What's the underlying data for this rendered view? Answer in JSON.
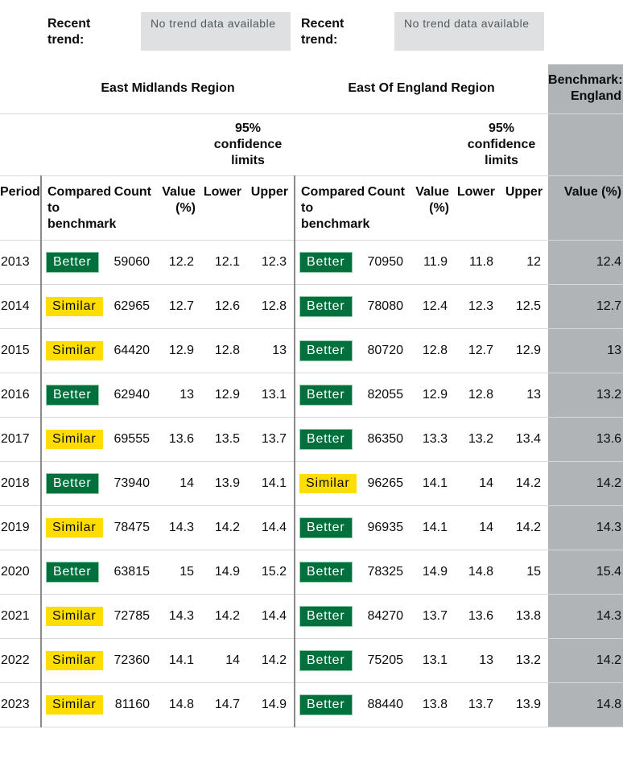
{
  "trend": {
    "left": {
      "label": "Recent trend:",
      "value": "No trend data available"
    },
    "right": {
      "label": "Recent trend:",
      "value": "No trend data available"
    }
  },
  "header": {
    "region1": "East Midlands Region",
    "region2": "East Of England Region",
    "benchmark": "Benchmark: England",
    "ci_label": "95% confidence limits",
    "columns": {
      "period": "Period",
      "compared": "Compared to benchmark",
      "count": "Count",
      "value": "Value (%)",
      "lower": "Lower",
      "upper": "Upper",
      "bench_value": "Value (%)"
    }
  },
  "colors": {
    "better": "#00703c",
    "similar": "#ffdd00",
    "benchmark_bg": "#b1b4b6"
  },
  "rows": [
    {
      "period": "2013",
      "em": {
        "cmp": "Better",
        "count": "59060",
        "value": "12.2",
        "lower": "12.1",
        "upper": "12.3"
      },
      "ee": {
        "cmp": "Better",
        "count": "70950",
        "value": "11.9",
        "lower": "11.8",
        "upper": "12"
      },
      "bench": "12.4"
    },
    {
      "period": "2014",
      "em": {
        "cmp": "Similar",
        "count": "62965",
        "value": "12.7",
        "lower": "12.6",
        "upper": "12.8"
      },
      "ee": {
        "cmp": "Better",
        "count": "78080",
        "value": "12.4",
        "lower": "12.3",
        "upper": "12.5"
      },
      "bench": "12.7"
    },
    {
      "period": "2015",
      "em": {
        "cmp": "Similar",
        "count": "64420",
        "value": "12.9",
        "lower": "12.8",
        "upper": "13"
      },
      "ee": {
        "cmp": "Better",
        "count": "80720",
        "value": "12.8",
        "lower": "12.7",
        "upper": "12.9"
      },
      "bench": "13"
    },
    {
      "period": "2016",
      "em": {
        "cmp": "Better",
        "count": "62940",
        "value": "13",
        "lower": "12.9",
        "upper": "13.1"
      },
      "ee": {
        "cmp": "Better",
        "count": "82055",
        "value": "12.9",
        "lower": "12.8",
        "upper": "13"
      },
      "bench": "13.2"
    },
    {
      "period": "2017",
      "em": {
        "cmp": "Similar",
        "count": "69555",
        "value": "13.6",
        "lower": "13.5",
        "upper": "13.7"
      },
      "ee": {
        "cmp": "Better",
        "count": "86350",
        "value": "13.3",
        "lower": "13.2",
        "upper": "13.4"
      },
      "bench": "13.6"
    },
    {
      "period": "2018",
      "em": {
        "cmp": "Better",
        "count": "73940",
        "value": "14",
        "lower": "13.9",
        "upper": "14.1"
      },
      "ee": {
        "cmp": "Similar",
        "count": "96265",
        "value": "14.1",
        "lower": "14",
        "upper": "14.2"
      },
      "bench": "14.2"
    },
    {
      "period": "2019",
      "em": {
        "cmp": "Similar",
        "count": "78475",
        "value": "14.3",
        "lower": "14.2",
        "upper": "14.4"
      },
      "ee": {
        "cmp": "Better",
        "count": "96935",
        "value": "14.1",
        "lower": "14",
        "upper": "14.2"
      },
      "bench": "14.3"
    },
    {
      "period": "2020",
      "em": {
        "cmp": "Better",
        "count": "63815",
        "value": "15",
        "lower": "14.9",
        "upper": "15.2"
      },
      "ee": {
        "cmp": "Better",
        "count": "78325",
        "value": "14.9",
        "lower": "14.8",
        "upper": "15"
      },
      "bench": "15.4"
    },
    {
      "period": "2021",
      "em": {
        "cmp": "Similar",
        "count": "72785",
        "value": "14.3",
        "lower": "14.2",
        "upper": "14.4"
      },
      "ee": {
        "cmp": "Better",
        "count": "84270",
        "value": "13.7",
        "lower": "13.6",
        "upper": "13.8"
      },
      "bench": "14.3"
    },
    {
      "period": "2022",
      "em": {
        "cmp": "Similar",
        "count": "72360",
        "value": "14.1",
        "lower": "14",
        "upper": "14.2"
      },
      "ee": {
        "cmp": "Better",
        "count": "75205",
        "value": "13.1",
        "lower": "13",
        "upper": "13.2"
      },
      "bench": "14.2"
    },
    {
      "period": "2023",
      "em": {
        "cmp": "Similar",
        "count": "81160",
        "value": "14.8",
        "lower": "14.7",
        "upper": "14.9"
      },
      "ee": {
        "cmp": "Better",
        "count": "88440",
        "value": "13.8",
        "lower": "13.7",
        "upper": "13.9"
      },
      "bench": "14.8"
    }
  ]
}
